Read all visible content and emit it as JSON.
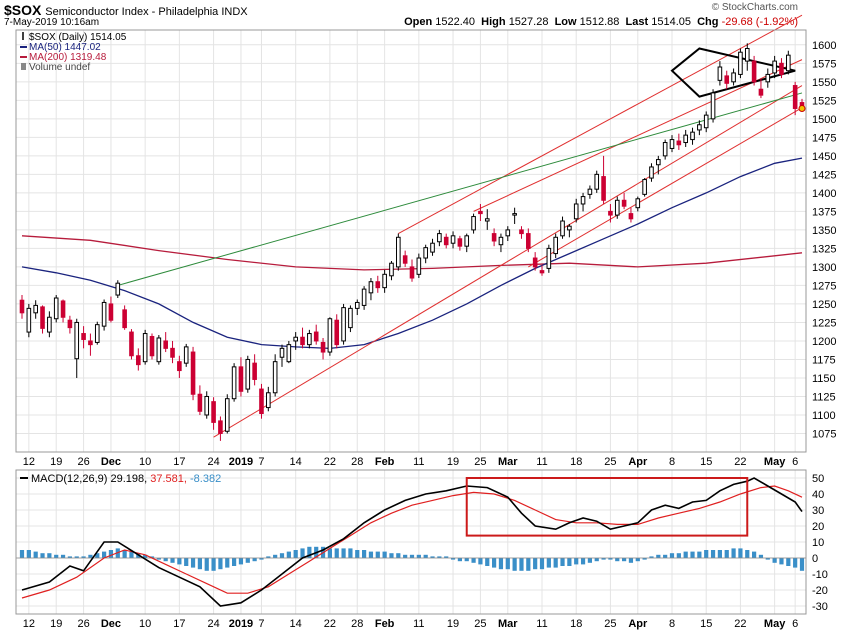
{
  "header": {
    "symbol": "$SOX",
    "name": "Semiconductor Index - Philadelphia INDX",
    "date": "7-May-2019 10:16am",
    "copyright": "© StockCharts.com",
    "open_label": "Open",
    "open": "1522.40",
    "high_label": "High",
    "high": "1527.28",
    "low_label": "Low",
    "low": "1512.88",
    "last_label": "Last",
    "last": "1514.05",
    "chg_label": "Chg",
    "chg": "-29.68 (-1.92%)"
  },
  "legend": {
    "price": "$SOX (Daily) 1514.05",
    "ma50": "MA(50) 1447.02",
    "ma200": "MA(200) 1319.48",
    "volume": "Volume undef"
  },
  "macd_legend": {
    "label": "MACD(12,26,9)",
    "macd": "29.198",
    "signal": "37.581",
    "hist": "-8.382"
  },
  "colors": {
    "up": "#000000",
    "down": "#cc0033",
    "ma50": "#1a237e",
    "ma200": "#b71c3c",
    "trend_red": "#e03030",
    "trend_green": "#2e8b3c",
    "hist": "#3a8fc8",
    "macd": "#000000",
    "signal": "#e02020",
    "grid": "#e4e4e4"
  },
  "chart_data": {
    "type": "candlestick",
    "title": "$SOX Semiconductor Index - Philadelphia INDX",
    "ylim": [
      1050,
      1620
    ],
    "yticks": [
      1075,
      1100,
      1125,
      1150,
      1175,
      1200,
      1225,
      1250,
      1275,
      1300,
      1325,
      1350,
      1375,
      1400,
      1425,
      1450,
      1475,
      1500,
      1525,
      1550,
      1575,
      1600
    ],
    "x_labels": [
      {
        "i": 1,
        "t": "12"
      },
      {
        "i": 5,
        "t": "19"
      },
      {
        "i": 9,
        "t": "26"
      },
      {
        "i": 13,
        "t": "Dec"
      },
      {
        "i": 18,
        "t": "10"
      },
      {
        "i": 23,
        "t": "17"
      },
      {
        "i": 28,
        "t": "24"
      },
      {
        "i": 32,
        "t": "2019"
      },
      {
        "i": 35,
        "t": "7"
      },
      {
        "i": 40,
        "t": "14"
      },
      {
        "i": 45,
        "t": "22"
      },
      {
        "i": 49,
        "t": "28"
      },
      {
        "i": 53,
        "t": "Feb"
      },
      {
        "i": 58,
        "t": "11"
      },
      {
        "i": 63,
        "t": "19"
      },
      {
        "i": 67,
        "t": "25"
      },
      {
        "i": 71,
        "t": "Mar"
      },
      {
        "i": 76,
        "t": "11"
      },
      {
        "i": 81,
        "t": "18"
      },
      {
        "i": 86,
        "t": "25"
      },
      {
        "i": 90,
        "t": "Apr"
      },
      {
        "i": 95,
        "t": "8"
      },
      {
        "i": 100,
        "t": "15"
      },
      {
        "i": 105,
        "t": "22"
      },
      {
        "i": 110,
        "t": "May"
      },
      {
        "i": 113,
        "t": "6"
      }
    ],
    "candles": [
      [
        1255,
        1262,
        1230,
        1238
      ],
      [
        1212,
        1250,
        1205,
        1244
      ],
      [
        1238,
        1255,
        1230,
        1248
      ],
      [
        1246,
        1248,
        1210,
        1217
      ],
      [
        1212,
        1240,
        1205,
        1232
      ],
      [
        1230,
        1262,
        1225,
        1258
      ],
      [
        1254,
        1256,
        1225,
        1232
      ],
      [
        1228,
        1234,
        1210,
        1218
      ],
      [
        1176,
        1230,
        1150,
        1225
      ],
      [
        1210,
        1220,
        1190,
        1202
      ],
      [
        1200,
        1210,
        1180,
        1195
      ],
      [
        1198,
        1226,
        1195,
        1222
      ],
      [
        1220,
        1256,
        1214,
        1252
      ],
      [
        1250,
        1260,
        1225,
        1228
      ],
      [
        1262,
        1282,
        1258,
        1278
      ],
      [
        1242,
        1248,
        1215,
        1218
      ],
      [
        1212,
        1216,
        1175,
        1180
      ],
      [
        1180,
        1190,
        1160,
        1168
      ],
      [
        1172,
        1215,
        1168,
        1210
      ],
      [
        1206,
        1210,
        1175,
        1180
      ],
      [
        1172,
        1208,
        1168,
        1204
      ],
      [
        1200,
        1212,
        1185,
        1190
      ],
      [
        1190,
        1200,
        1170,
        1178
      ],
      [
        1172,
        1180,
        1150,
        1160
      ],
      [
        1170,
        1196,
        1165,
        1192
      ],
      [
        1185,
        1192,
        1120,
        1128
      ],
      [
        1128,
        1140,
        1100,
        1105
      ],
      [
        1100,
        1132,
        1095,
        1125
      ],
      [
        1118,
        1124,
        1080,
        1090
      ],
      [
        1092,
        1098,
        1065,
        1075
      ],
      [
        1078,
        1128,
        1075,
        1122
      ],
      [
        1122,
        1170,
        1118,
        1165
      ],
      [
        1165,
        1178,
        1125,
        1132
      ],
      [
        1135,
        1180,
        1130,
        1175
      ],
      [
        1170,
        1182,
        1140,
        1148
      ],
      [
        1135,
        1142,
        1095,
        1102
      ],
      [
        1110,
        1138,
        1105,
        1130
      ],
      [
        1130,
        1182,
        1125,
        1172
      ],
      [
        1178,
        1195,
        1165,
        1190
      ],
      [
        1172,
        1200,
        1170,
        1195
      ],
      [
        1200,
        1212,
        1188,
        1205
      ],
      [
        1205,
        1218,
        1190,
        1195
      ],
      [
        1195,
        1215,
        1190,
        1210
      ],
      [
        1212,
        1222,
        1195,
        1200
      ],
      [
        1198,
        1204,
        1175,
        1185
      ],
      [
        1185,
        1232,
        1180,
        1230
      ],
      [
        1228,
        1236,
        1190,
        1195
      ],
      [
        1200,
        1250,
        1195,
        1245
      ],
      [
        1218,
        1248,
        1212,
        1244
      ],
      [
        1244,
        1256,
        1235,
        1252
      ],
      [
        1248,
        1274,
        1242,
        1270
      ],
      [
        1265,
        1285,
        1255,
        1280
      ],
      [
        1280,
        1288,
        1265,
        1272
      ],
      [
        1272,
        1296,
        1265,
        1290
      ],
      [
        1288,
        1308,
        1282,
        1305
      ],
      [
        1300,
        1345,
        1295,
        1340
      ],
      [
        1315,
        1322,
        1300,
        1305
      ],
      [
        1300,
        1310,
        1280,
        1285
      ],
      [
        1290,
        1318,
        1285,
        1312
      ],
      [
        1312,
        1330,
        1305,
        1326
      ],
      [
        1320,
        1338,
        1315,
        1332
      ],
      [
        1334,
        1350,
        1328,
        1345
      ],
      [
        1340,
        1345,
        1325,
        1330
      ],
      [
        1332,
        1348,
        1325,
        1342
      ],
      [
        1338,
        1342,
        1322,
        1328
      ],
      [
        1328,
        1345,
        1320,
        1342
      ],
      [
        1350,
        1372,
        1345,
        1368
      ],
      [
        1375,
        1385,
        1362,
        1372
      ],
      [
        1362,
        1378,
        1350,
        1365
      ],
      [
        1345,
        1352,
        1328,
        1335
      ],
      [
        1330,
        1345,
        1320,
        1340
      ],
      [
        1342,
        1355,
        1335,
        1350
      ],
      [
        1370,
        1380,
        1358,
        1372
      ],
      [
        1350,
        1355,
        1338,
        1345
      ],
      [
        1345,
        1352,
        1320,
        1325
      ],
      [
        1312,
        1320,
        1295,
        1300
      ],
      [
        1295,
        1302,
        1288,
        1292
      ],
      [
        1298,
        1330,
        1292,
        1325
      ],
      [
        1318,
        1345,
        1312,
        1340
      ],
      [
        1342,
        1368,
        1338,
        1362
      ],
      [
        1350,
        1358,
        1340,
        1355
      ],
      [
        1365,
        1392,
        1360,
        1385
      ],
      [
        1385,
        1400,
        1375,
        1395
      ],
      [
        1398,
        1410,
        1392,
        1405
      ],
      [
        1405,
        1430,
        1400,
        1425
      ],
      [
        1422,
        1450,
        1385,
        1390
      ],
      [
        1375,
        1385,
        1360,
        1370
      ],
      [
        1370,
        1395,
        1365,
        1390
      ],
      [
        1390,
        1400,
        1378,
        1382
      ],
      [
        1372,
        1380,
        1360,
        1365
      ],
      [
        1380,
        1395,
        1375,
        1392
      ],
      [
        1398,
        1420,
        1395,
        1418
      ],
      [
        1420,
        1440,
        1415,
        1435
      ],
      [
        1438,
        1450,
        1425,
        1445
      ],
      [
        1450,
        1472,
        1445,
        1468
      ],
      [
        1460,
        1478,
        1455,
        1472
      ],
      [
        1470,
        1480,
        1458,
        1465
      ],
      [
        1468,
        1485,
        1462,
        1478
      ],
      [
        1472,
        1488,
        1465,
        1482
      ],
      [
        1485,
        1498,
        1478,
        1492
      ],
      [
        1488,
        1510,
        1482,
        1505
      ],
      [
        1500,
        1540,
        1495,
        1535
      ],
      [
        1552,
        1578,
        1545,
        1570
      ],
      [
        1558,
        1565,
        1540,
        1548
      ],
      [
        1550,
        1568,
        1545,
        1562
      ],
      [
        1560,
        1595,
        1555,
        1590
      ],
      [
        1578,
        1602,
        1565,
        1595
      ],
      [
        1578,
        1585,
        1545,
        1550
      ],
      [
        1540,
        1555,
        1528,
        1532
      ],
      [
        1550,
        1568,
        1542,
        1560
      ],
      [
        1562,
        1585,
        1555,
        1578
      ],
      [
        1575,
        1582,
        1555,
        1560
      ],
      [
        1565,
        1592,
        1560,
        1586
      ],
      [
        1545,
        1550,
        1505,
        1514
      ],
      [
        1522,
        1527,
        1512,
        1514
      ]
    ],
    "ma50": [
      [
        0,
        1300
      ],
      [
        5,
        1292
      ],
      [
        10,
        1282
      ],
      [
        15,
        1268
      ],
      [
        20,
        1250
      ],
      [
        25,
        1225
      ],
      [
        30,
        1205
      ],
      [
        35,
        1195
      ],
      [
        40,
        1192
      ],
      [
        45,
        1190
      ],
      [
        50,
        1195
      ],
      [
        55,
        1210
      ],
      [
        60,
        1228
      ],
      [
        65,
        1250
      ],
      [
        70,
        1275
      ],
      [
        75,
        1298
      ],
      [
        80,
        1318
      ],
      [
        85,
        1338
      ],
      [
        90,
        1358
      ],
      [
        95,
        1380
      ],
      [
        100,
        1400
      ],
      [
        105,
        1422
      ],
      [
        110,
        1440
      ],
      [
        114,
        1447
      ]
    ],
    "ma200": [
      [
        0,
        1342
      ],
      [
        10,
        1336
      ],
      [
        20,
        1322
      ],
      [
        30,
        1310
      ],
      [
        40,
        1300
      ],
      [
        50,
        1296
      ],
      [
        60,
        1298
      ],
      [
        70,
        1302
      ],
      [
        80,
        1305
      ],
      [
        90,
        1300
      ],
      [
        100,
        1305
      ],
      [
        110,
        1315
      ],
      [
        114,
        1319
      ]
    ],
    "trendlines": [
      {
        "color": "red",
        "from": [
          28,
          1070
        ],
        "to": [
          114,
          1545
        ]
      },
      {
        "color": "red",
        "from": [
          55,
          1345
        ],
        "to": [
          114,
          1640
        ]
      },
      {
        "color": "red",
        "from": [
          74,
          1300
        ],
        "to": [
          114,
          1515
        ]
      },
      {
        "color": "red",
        "from": [
          66,
          1375
        ],
        "to": [
          114,
          1580
        ]
      },
      {
        "color": "green",
        "from": [
          14,
          1275
        ],
        "to": [
          114,
          1535
        ]
      }
    ],
    "pattern_box": {
      "points": [
        [
          95,
          1565
        ],
        [
          99,
          1595
        ],
        [
          113,
          1565
        ],
        [
          99,
          1530
        ]
      ]
    },
    "macd": {
      "ylim": [
        -35,
        55
      ],
      "yticks": [
        -30,
        -20,
        -10,
        0,
        10,
        20,
        30,
        40,
        50
      ],
      "macd": [
        [
          0,
          -20
        ],
        [
          4,
          -15
        ],
        [
          7,
          -5
        ],
        [
          9,
          -8
        ],
        [
          12,
          10
        ],
        [
          14,
          10
        ],
        [
          17,
          2
        ],
        [
          20,
          -6
        ],
        [
          23,
          -12
        ],
        [
          26,
          -18
        ],
        [
          29,
          -30
        ],
        [
          32,
          -28
        ],
        [
          35,
          -20
        ],
        [
          38,
          -10
        ],
        [
          41,
          0
        ],
        [
          44,
          5
        ],
        [
          47,
          12
        ],
        [
          50,
          22
        ],
        [
          53,
          30
        ],
        [
          56,
          36
        ],
        [
          59,
          40
        ],
        [
          62,
          42
        ],
        [
          65,
          45
        ],
        [
          68,
          44
        ],
        [
          71,
          38
        ],
        [
          73,
          28
        ],
        [
          75,
          20
        ],
        [
          78,
          18
        ],
        [
          80,
          22
        ],
        [
          82,
          25
        ],
        [
          84,
          23
        ],
        [
          86,
          18
        ],
        [
          88,
          20
        ],
        [
          90,
          22
        ],
        [
          92,
          30
        ],
        [
          94,
          33
        ],
        [
          96,
          31
        ],
        [
          98,
          35
        ],
        [
          100,
          36
        ],
        [
          102,
          42
        ],
        [
          104,
          46
        ],
        [
          106,
          48
        ],
        [
          107,
          50
        ],
        [
          109,
          45
        ],
        [
          111,
          40
        ],
        [
          113,
          35
        ],
        [
          114,
          29
        ]
      ],
      "signal": [
        [
          0,
          -25
        ],
        [
          4,
          -20
        ],
        [
          8,
          -12
        ],
        [
          12,
          0
        ],
        [
          15,
          5
        ],
        [
          18,
          2
        ],
        [
          21,
          -4
        ],
        [
          24,
          -10
        ],
        [
          27,
          -16
        ],
        [
          30,
          -22
        ],
        [
          33,
          -22
        ],
        [
          36,
          -18
        ],
        [
          39,
          -10
        ],
        [
          42,
          -2
        ],
        [
          45,
          6
        ],
        [
          48,
          14
        ],
        [
          51,
          22
        ],
        [
          54,
          28
        ],
        [
          57,
          33
        ],
        [
          60,
          36
        ],
        [
          63,
          39
        ],
        [
          66,
          41
        ],
        [
          69,
          40
        ],
        [
          72,
          36
        ],
        [
          75,
          30
        ],
        [
          78,
          24
        ],
        [
          81,
          22
        ],
        [
          84,
          22
        ],
        [
          87,
          21
        ],
        [
          90,
          21
        ],
        [
          93,
          25
        ],
        [
          96,
          28
        ],
        [
          99,
          31
        ],
        [
          102,
          35
        ],
        [
          105,
          40
        ],
        [
          108,
          44
        ],
        [
          110,
          45
        ],
        [
          112,
          42
        ],
        [
          114,
          38
        ]
      ],
      "hist": [
        5,
        5,
        4,
        3,
        3,
        2,
        2,
        1,
        1,
        1,
        2,
        3,
        4,
        5,
        6,
        5,
        4,
        3,
        2,
        1,
        -1,
        -2,
        -3,
        -4,
        -5,
        -6,
        -7,
        -8,
        -8,
        -7,
        -6,
        -5,
        -4,
        -3,
        -2,
        -1,
        1,
        2,
        3,
        4,
        5,
        6,
        7,
        7,
        7,
        6,
        6,
        6,
        6,
        5,
        5,
        4,
        4,
        4,
        3,
        3,
        2,
        2,
        2,
        2,
        1,
        1,
        1,
        -1,
        -2,
        -2,
        -3,
        -4,
        -5,
        -6,
        -7,
        -7,
        -8,
        -8,
        -8,
        -7,
        -7,
        -6,
        -6,
        -5,
        -5,
        -4,
        -4,
        -3,
        -2,
        -1,
        -1,
        -2,
        -2,
        -3,
        -2,
        -1,
        1,
        2,
        2,
        3,
        3,
        4,
        4,
        4,
        5,
        5,
        5,
        5,
        6,
        6,
        5,
        4,
        2,
        -1,
        -3,
        -4,
        -5,
        -6,
        -8
      ],
      "box": {
        "from": [
          65,
          50
        ],
        "to": [
          106,
          14
        ]
      }
    }
  }
}
